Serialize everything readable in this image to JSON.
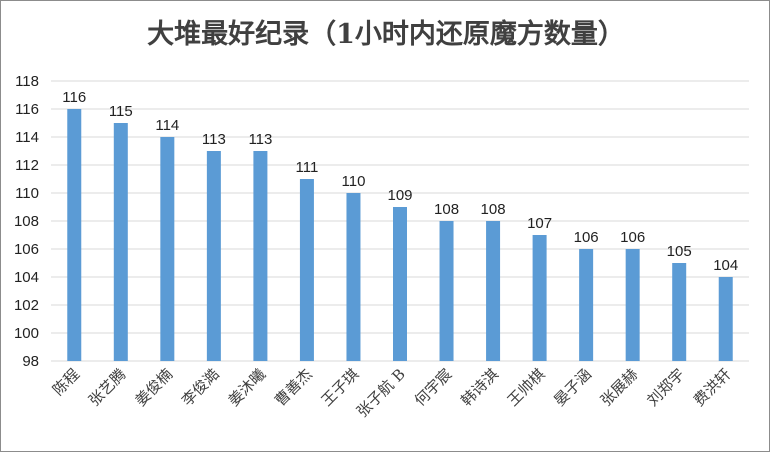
{
  "chart_data": {
    "type": "bar",
    "title": "大堆最好纪录（1小时内还原魔方数量）",
    "xlabel": "",
    "ylabel": "",
    "ylim": [
      98,
      118
    ],
    "yticks": [
      "98",
      "100",
      "102",
      "104",
      "106",
      "108",
      "110",
      "112",
      "114",
      "116",
      "118"
    ],
    "grid": true,
    "legend": "none",
    "bar_color": "#5b9bd5",
    "categories": [
      "陈程",
      "张艺腾",
      "姜俊楠",
      "李俊澔",
      "姜沐曦",
      "曹善杰",
      "王子琪",
      "张子航 B",
      "何宇宸",
      "韩诗淇",
      "王帅棋",
      "晏子涵",
      "张展赫",
      "刘郑宇",
      "费洪轩"
    ],
    "values": [
      116,
      115,
      114,
      113,
      113,
      111,
      110,
      109,
      108,
      108,
      107,
      106,
      106,
      105,
      104
    ],
    "data_labels": [
      "116",
      "115",
      "114",
      "113",
      "113",
      "111",
      "110",
      "109",
      "108",
      "108",
      "107",
      "106",
      "106",
      "105",
      "104"
    ]
  }
}
